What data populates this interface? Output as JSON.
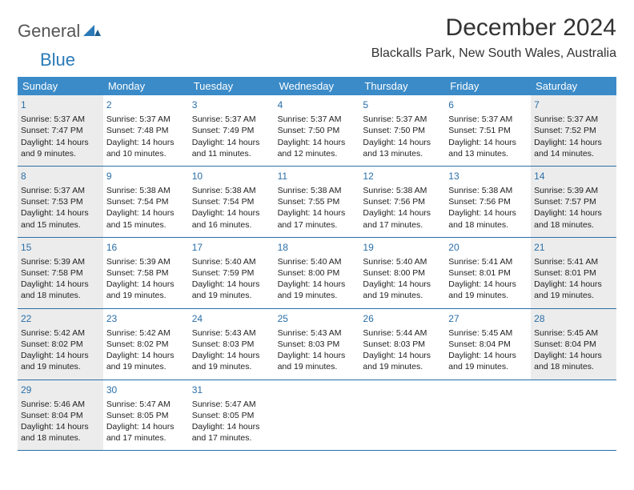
{
  "logo": {
    "general": "General",
    "blue": "Blue"
  },
  "title": "December 2024",
  "location": "Blackalls Park, New South Wales, Australia",
  "colors": {
    "header_bg": "#3b8bc8",
    "header_text": "#ffffff",
    "daynum": "#2a6fa8",
    "row_border": "#2a6fa8",
    "shaded": "#ececec",
    "body_text": "#222222"
  },
  "daysOfWeek": [
    "Sunday",
    "Monday",
    "Tuesday",
    "Wednesday",
    "Thursday",
    "Friday",
    "Saturday"
  ],
  "weeks": [
    [
      {
        "n": "1",
        "shaded": true,
        "sr": "Sunrise: 5:37 AM",
        "ss": "Sunset: 7:47 PM",
        "d1": "Daylight: 14 hours",
        "d2": "and 9 minutes."
      },
      {
        "n": "2",
        "sr": "Sunrise: 5:37 AM",
        "ss": "Sunset: 7:48 PM",
        "d1": "Daylight: 14 hours",
        "d2": "and 10 minutes."
      },
      {
        "n": "3",
        "sr": "Sunrise: 5:37 AM",
        "ss": "Sunset: 7:49 PM",
        "d1": "Daylight: 14 hours",
        "d2": "and 11 minutes."
      },
      {
        "n": "4",
        "sr": "Sunrise: 5:37 AM",
        "ss": "Sunset: 7:50 PM",
        "d1": "Daylight: 14 hours",
        "d2": "and 12 minutes."
      },
      {
        "n": "5",
        "sr": "Sunrise: 5:37 AM",
        "ss": "Sunset: 7:50 PM",
        "d1": "Daylight: 14 hours",
        "d2": "and 13 minutes."
      },
      {
        "n": "6",
        "sr": "Sunrise: 5:37 AM",
        "ss": "Sunset: 7:51 PM",
        "d1": "Daylight: 14 hours",
        "d2": "and 13 minutes."
      },
      {
        "n": "7",
        "shaded": true,
        "sr": "Sunrise: 5:37 AM",
        "ss": "Sunset: 7:52 PM",
        "d1": "Daylight: 14 hours",
        "d2": "and 14 minutes."
      }
    ],
    [
      {
        "n": "8",
        "shaded": true,
        "sr": "Sunrise: 5:37 AM",
        "ss": "Sunset: 7:53 PM",
        "d1": "Daylight: 14 hours",
        "d2": "and 15 minutes."
      },
      {
        "n": "9",
        "sr": "Sunrise: 5:38 AM",
        "ss": "Sunset: 7:54 PM",
        "d1": "Daylight: 14 hours",
        "d2": "and 15 minutes."
      },
      {
        "n": "10",
        "sr": "Sunrise: 5:38 AM",
        "ss": "Sunset: 7:54 PM",
        "d1": "Daylight: 14 hours",
        "d2": "and 16 minutes."
      },
      {
        "n": "11",
        "sr": "Sunrise: 5:38 AM",
        "ss": "Sunset: 7:55 PM",
        "d1": "Daylight: 14 hours",
        "d2": "and 17 minutes."
      },
      {
        "n": "12",
        "sr": "Sunrise: 5:38 AM",
        "ss": "Sunset: 7:56 PM",
        "d1": "Daylight: 14 hours",
        "d2": "and 17 minutes."
      },
      {
        "n": "13",
        "sr": "Sunrise: 5:38 AM",
        "ss": "Sunset: 7:56 PM",
        "d1": "Daylight: 14 hours",
        "d2": "and 18 minutes."
      },
      {
        "n": "14",
        "shaded": true,
        "sr": "Sunrise: 5:39 AM",
        "ss": "Sunset: 7:57 PM",
        "d1": "Daylight: 14 hours",
        "d2": "and 18 minutes."
      }
    ],
    [
      {
        "n": "15",
        "shaded": true,
        "sr": "Sunrise: 5:39 AM",
        "ss": "Sunset: 7:58 PM",
        "d1": "Daylight: 14 hours",
        "d2": "and 18 minutes."
      },
      {
        "n": "16",
        "sr": "Sunrise: 5:39 AM",
        "ss": "Sunset: 7:58 PM",
        "d1": "Daylight: 14 hours",
        "d2": "and 19 minutes."
      },
      {
        "n": "17",
        "sr": "Sunrise: 5:40 AM",
        "ss": "Sunset: 7:59 PM",
        "d1": "Daylight: 14 hours",
        "d2": "and 19 minutes."
      },
      {
        "n": "18",
        "sr": "Sunrise: 5:40 AM",
        "ss": "Sunset: 8:00 PM",
        "d1": "Daylight: 14 hours",
        "d2": "and 19 minutes."
      },
      {
        "n": "19",
        "sr": "Sunrise: 5:40 AM",
        "ss": "Sunset: 8:00 PM",
        "d1": "Daylight: 14 hours",
        "d2": "and 19 minutes."
      },
      {
        "n": "20",
        "sr": "Sunrise: 5:41 AM",
        "ss": "Sunset: 8:01 PM",
        "d1": "Daylight: 14 hours",
        "d2": "and 19 minutes."
      },
      {
        "n": "21",
        "shaded": true,
        "sr": "Sunrise: 5:41 AM",
        "ss": "Sunset: 8:01 PM",
        "d1": "Daylight: 14 hours",
        "d2": "and 19 minutes."
      }
    ],
    [
      {
        "n": "22",
        "shaded": true,
        "sr": "Sunrise: 5:42 AM",
        "ss": "Sunset: 8:02 PM",
        "d1": "Daylight: 14 hours",
        "d2": "and 19 minutes."
      },
      {
        "n": "23",
        "sr": "Sunrise: 5:42 AM",
        "ss": "Sunset: 8:02 PM",
        "d1": "Daylight: 14 hours",
        "d2": "and 19 minutes."
      },
      {
        "n": "24",
        "sr": "Sunrise: 5:43 AM",
        "ss": "Sunset: 8:03 PM",
        "d1": "Daylight: 14 hours",
        "d2": "and 19 minutes."
      },
      {
        "n": "25",
        "sr": "Sunrise: 5:43 AM",
        "ss": "Sunset: 8:03 PM",
        "d1": "Daylight: 14 hours",
        "d2": "and 19 minutes."
      },
      {
        "n": "26",
        "sr": "Sunrise: 5:44 AM",
        "ss": "Sunset: 8:03 PM",
        "d1": "Daylight: 14 hours",
        "d2": "and 19 minutes."
      },
      {
        "n": "27",
        "sr": "Sunrise: 5:45 AM",
        "ss": "Sunset: 8:04 PM",
        "d1": "Daylight: 14 hours",
        "d2": "and 19 minutes."
      },
      {
        "n": "28",
        "shaded": true,
        "sr": "Sunrise: 5:45 AM",
        "ss": "Sunset: 8:04 PM",
        "d1": "Daylight: 14 hours",
        "d2": "and 18 minutes."
      }
    ],
    [
      {
        "n": "29",
        "shaded": true,
        "sr": "Sunrise: 5:46 AM",
        "ss": "Sunset: 8:04 PM",
        "d1": "Daylight: 14 hours",
        "d2": "and 18 minutes."
      },
      {
        "n": "30",
        "sr": "Sunrise: 5:47 AM",
        "ss": "Sunset: 8:05 PM",
        "d1": "Daylight: 14 hours",
        "d2": "and 17 minutes."
      },
      {
        "n": "31",
        "sr": "Sunrise: 5:47 AM",
        "ss": "Sunset: 8:05 PM",
        "d1": "Daylight: 14 hours",
        "d2": "and 17 minutes."
      },
      {
        "empty": true
      },
      {
        "empty": true
      },
      {
        "empty": true
      },
      {
        "empty": true
      }
    ]
  ]
}
